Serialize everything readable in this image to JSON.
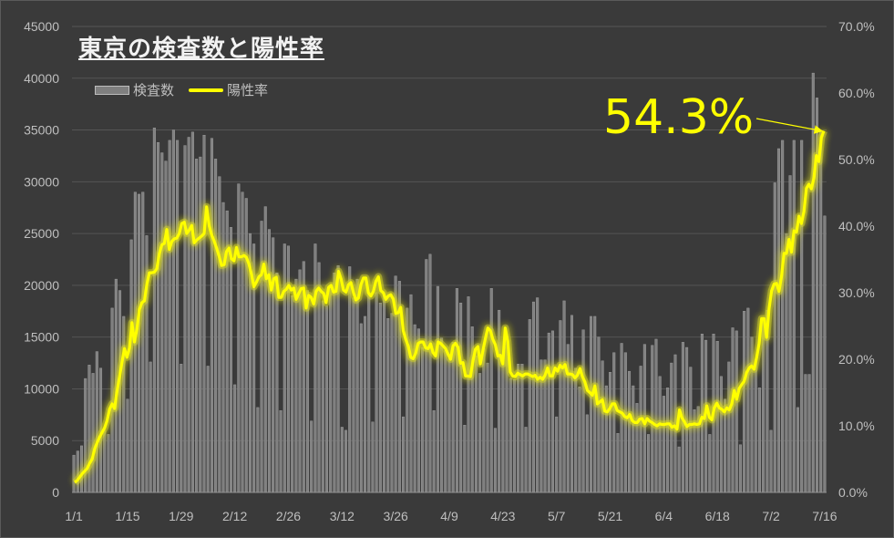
{
  "chart_data": {
    "type": "bar",
    "title": "東京の検査数と陽性率",
    "legend": [
      "検査数",
      "陽性率"
    ],
    "legend_placement": "top-left",
    "annotation": "54.3%",
    "grid": true,
    "y_left_ticks": [
      "0",
      "5000",
      "10000",
      "15000",
      "20000",
      "25000",
      "30000",
      "35000",
      "40000",
      "45000"
    ],
    "y_right_ticks": [
      "0.0%",
      "10.0%",
      "20.0%",
      "30.0%",
      "40.0%",
      "50.0%",
      "60.0%",
      "70.0%"
    ],
    "x_ticks": [
      "1/1",
      "1/15",
      "1/29",
      "2/12",
      "2/26",
      "3/12",
      "3/26",
      "4/9",
      "4/23",
      "5/7",
      "5/21",
      "6/4",
      "6/18",
      "7/2",
      "7/16"
    ],
    "ylim_left": [
      0,
      45000
    ],
    "ylim_right": [
      0,
      70
    ],
    "series": [
      {
        "name": "検査数",
        "type": "bar",
        "values": [
          3600,
          4000,
          4500,
          11000,
          12300,
          11500,
          13600,
          12000,
          6000,
          5600,
          17800,
          20600,
          19500,
          17000,
          9000,
          24400,
          29000,
          28800,
          29000,
          24800,
          12600,
          35200,
          33800,
          32800,
          32000,
          34000,
          35000,
          34000,
          12400,
          33500,
          34300,
          34800,
          32200,
          32400,
          34500,
          12200,
          34200,
          32200,
          30500,
          28000,
          27200,
          25600,
          10400,
          29800,
          29000,
          28400,
          25000,
          24000,
          8200,
          26200,
          27600,
          25400,
          24600,
          21200,
          7900,
          24000,
          23800,
          19000,
          20600,
          21500,
          22300,
          19500,
          6900,
          24000,
          22200,
          18500,
          18000,
          20000,
          21200,
          21900,
          6300,
          6000,
          21800,
          18800,
          20600,
          16300,
          17000,
          19200,
          6800,
          19300,
          18300,
          19200,
          16800,
          17300,
          20900,
          20400,
          7300,
          17800,
          19100,
          16200,
          15800,
          14000,
          22500,
          23000,
          7900,
          19900,
          14900,
          13700,
          12900,
          14500,
          19700,
          18300,
          6500,
          18900,
          16000,
          13200,
          11500,
          13900,
          12500,
          19700,
          6200,
          17600,
          12800,
          15200,
          11000,
          10900,
          12400,
          12400,
          6300,
          16700,
          18400,
          18800,
          12800,
          12800,
          15400,
          15600,
          7300,
          16600,
          18500,
          14300,
          17100,
          12000,
          10200,
          15700,
          7500,
          17000,
          17000,
          15000,
          12700,
          10300,
          11600,
          13500,
          5700,
          14400,
          13500,
          11700,
          10300,
          8600,
          12200,
          14300,
          5600,
          14200,
          14800,
          11200,
          9300,
          10100,
          12500,
          13300,
          4400,
          14500,
          14000,
          12100,
          8000,
          8300,
          15300,
          14700,
          5600,
          15300,
          14600,
          11200,
          9000,
          12600,
          15900,
          15600,
          4600,
          17500,
          17800,
          15000,
          12800,
          10100,
          16800,
          17600,
          6000,
          29900,
          33200,
          34000,
          25000,
          30600,
          34000,
          8200,
          34000,
          11400,
          11400,
          40500,
          38100,
          34800,
          26700
        ]
      },
      {
        "name": "陽性率",
        "type": "line",
        "values": [
          1.5,
          1.8,
          2.3,
          2.8,
          3.2,
          3.6,
          4.4,
          5.0,
          6.5,
          7.5,
          8.3,
          9.0,
          9.7,
          10.8,
          12.5,
          13.3,
          12.6,
          15.2,
          17.4,
          19.6,
          21.6,
          20.3,
          21.7,
          25.5,
          22.6,
          24.6,
          27.5,
          28.5,
          28.8,
          31.3,
          33.0,
          33.0,
          33.1,
          33.6,
          35.9,
          37.2,
          37.4,
          39.5,
          36.5,
          37.7,
          38.1,
          38.2,
          38.9,
          40.4,
          40.6,
          38.9,
          39.4,
          40.1,
          37.5,
          37.9,
          38.2,
          38.5,
          38.9,
          42.9,
          40.1,
          38.7,
          37.8,
          36.7,
          35.5,
          34.1,
          34.2,
          36.2,
          36.7,
          35.1,
          34.8,
          36.8,
          35.4,
          35.4,
          35.6,
          35.3,
          34.3,
          32.8,
          30.9,
          31.6,
          32.4,
          32.7,
          34.3,
          32.1,
          32.7,
          30.4,
          32.1,
          32.3,
          29.3,
          29.3,
          30.2,
          30.5,
          31.1,
          30.4,
          30.7,
          29.0,
          29.9,
          30.6,
          30.7,
          27.7,
          29.6,
          29.3,
          28.3,
          30.2,
          30.7,
          30.2,
          29.9,
          28.5,
          30.8,
          31.1,
          30.1,
          30.2,
          33.2,
          32.1,
          30.4,
          30.1,
          31.2,
          31.5,
          30.0,
          28.9,
          29.2,
          31.2,
          32.2,
          32.2,
          30.0,
          29.5,
          30.2,
          31.7,
          32.4,
          30.3,
          30.0,
          29.0,
          29.5,
          29.7,
          29.0,
          26.9,
          27.0,
          27.8,
          24.3,
          23.0,
          22.0,
          20.3,
          20.1,
          20.9,
          22.4,
          22.6,
          22.6,
          21.7,
          21.6,
          22.3,
          21.0,
          20.5,
          22.6,
          22.4,
          22.0,
          21.6,
          20.8,
          20.0,
          22.0,
          22.4,
          21.8,
          19.4,
          19.5,
          17.5,
          17.5,
          17.4,
          19.7,
          21.5,
          21.9,
          19.3,
          21.3,
          23.1,
          24.7,
          24.3,
          23.0,
          22.2,
          20.5,
          20.6,
          19.3,
          24.7,
          22.7,
          18.1,
          17.5,
          17.4,
          17.9,
          17.7,
          17.5,
          17.8,
          17.8,
          17.6,
          17.4,
          17.6,
          17.0,
          17.3,
          17.0,
          17.6,
          18.7,
          17.5,
          17.5,
          18.7,
          18.2,
          19.1,
          18.7,
          19.2,
          17.8,
          17.8,
          17.7,
          17.2,
          17.6,
          18.6,
          17.4,
          16.6,
          15.3,
          15.0,
          14.6,
          16.0,
          13.3,
          13.6,
          13.9,
          12.2,
          12.1,
          12.6,
          13.3,
          13.3,
          12.3,
          12.1,
          11.9,
          11.4,
          11.2,
          11.7,
          10.8,
          10.5,
          10.5,
          11.0,
          11.1,
          10.3,
          11.1,
          10.7,
          10.5,
          10.2,
          10.0,
          10.3,
          10.2,
          10.2,
          10.3,
          10.3,
          9.8,
          10.0,
          9.5,
          12.4,
          11.2,
          10.6,
          9.9,
          10.2,
          10.2,
          10.3,
          10.2,
          10.3,
          11.3,
          11.1,
          13.0,
          11.3,
          10.9,
          12.7,
          13.4,
          12.7,
          12.5,
          12.1,
          12.7,
          12.4,
          13.3,
          15.3,
          14.0,
          15.6,
          16.2,
          16.7,
          18.0,
          18.7,
          19.0,
          18.5,
          20.3,
          22.4,
          26.1,
          26.1,
          23.3,
          27.6,
          30.3,
          31.3,
          31.4,
          30.2,
          32.5,
          35.9,
          35.9,
          38.0,
          36.1,
          39.3,
          39.1,
          41.5,
          40.4,
          42.2,
          45.7,
          46.3,
          45.6,
          47.2,
          50.6,
          49.7,
          53.3,
          54.3
        ]
      }
    ]
  }
}
